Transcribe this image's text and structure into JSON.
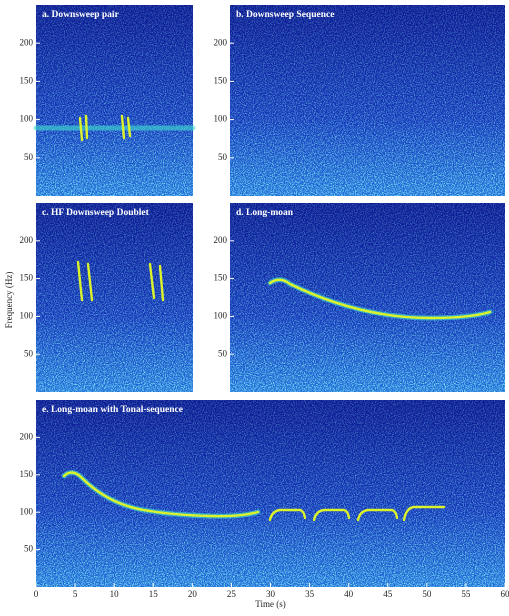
{
  "chart_data": [
    {
      "type": "spectrogram",
      "title": "a. Downsweep pair",
      "ylim": [
        0,
        250
      ],
      "yticks": [
        50,
        100,
        150,
        200
      ]
    },
    {
      "type": "spectrogram",
      "title": "b. Downsweep Sequence",
      "ylim": [
        0,
        250
      ],
      "yticks": [
        50,
        100,
        150,
        200
      ]
    },
    {
      "type": "spectrogram",
      "title": "c. HF Downsweep Doublet",
      "ylim": [
        0,
        250
      ],
      "yticks": [
        50,
        100,
        150,
        200
      ],
      "y_label": "Frequency (Hz)"
    },
    {
      "type": "spectrogram",
      "title": "d. Long-moan",
      "ylim": [
        0,
        250
      ],
      "yticks": [
        50,
        100,
        150,
        200
      ]
    },
    {
      "type": "spectrogram",
      "title": "e. Long-moan with Tonal-sequence",
      "ylim": [
        0,
        250
      ],
      "yticks": [
        50,
        100,
        150,
        200
      ],
      "xlim": [
        0,
        60
      ],
      "xticks": [
        0,
        5,
        10,
        15,
        20,
        25,
        30,
        35,
        40,
        45,
        50,
        55,
        60
      ],
      "x_label": "Time (s)"
    }
  ]
}
